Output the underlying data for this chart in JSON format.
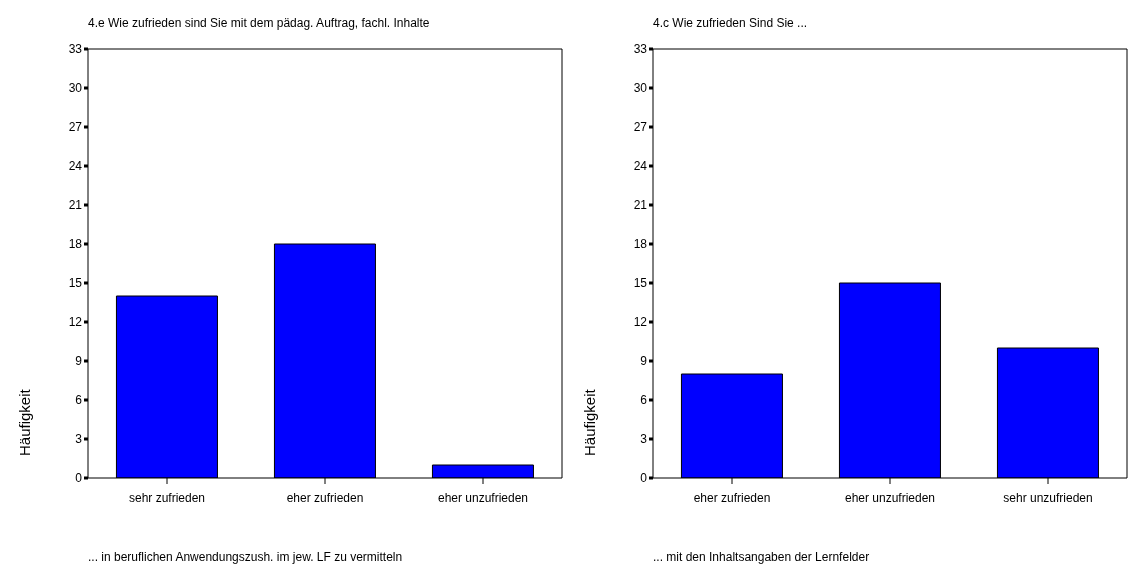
{
  "chart_data": [
    {
      "type": "bar",
      "title": "4.e Wie zufrieden sind Sie mit dem pädag. Auftrag, fachl. Inhalte",
      "ylabel": "Häufigkeit",
      "categories": [
        "sehr zufrieden",
        "eher zufrieden",
        "eher unzufrieden"
      ],
      "values": [
        14,
        18,
        1
      ],
      "color": "#0000ff",
      "ylim": [
        0,
        33
      ],
      "yticks": [
        0,
        3,
        6,
        9,
        12,
        15,
        18,
        21,
        24,
        27,
        30,
        33
      ],
      "annotations": [
        "... in beruflichen Anwendungszush. im jew. LF zu vermitteln"
      ]
    },
    {
      "type": "bar",
      "title": "4.c  Wie zufrieden Sind Sie ...",
      "ylabel": "Häufigkeit",
      "categories": [
        "eher zufrieden",
        "eher unzufrieden",
        "sehr unzufrieden"
      ],
      "values": [
        8,
        15,
        10
      ],
      "color": "#0000ff",
      "ylim": [
        0,
        33
      ],
      "yticks": [
        0,
        3,
        6,
        9,
        12,
        15,
        18,
        21,
        24,
        27,
        30,
        33
      ],
      "annotations": [
        "... mit den Inhaltsangaben der Lernfelder"
      ]
    }
  ]
}
